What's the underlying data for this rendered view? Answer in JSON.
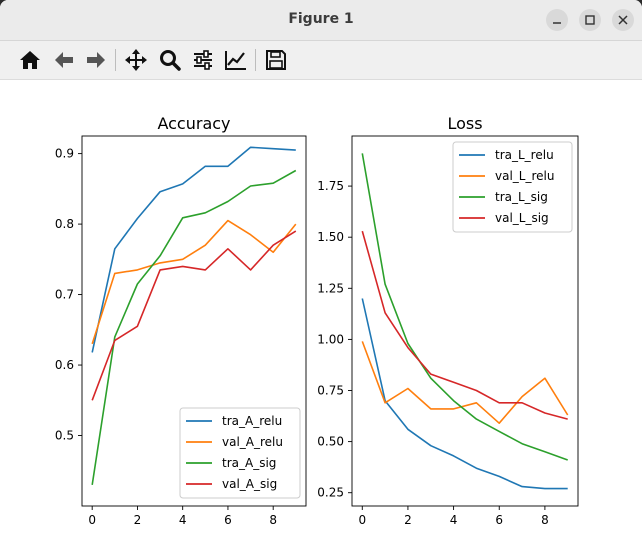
{
  "window": {
    "title": "Figure 1"
  },
  "toolbar": {
    "buttons": [
      "home-icon",
      "back-arrow-icon",
      "forward-arrow-icon",
      "pan-icon",
      "zoom-icon",
      "subplots-config-icon",
      "edit-axis-icon",
      "save-icon"
    ]
  },
  "colors": {
    "blue": "#1f77b4",
    "orange": "#ff7f0e",
    "green": "#2ca02c",
    "red": "#d62728"
  },
  "chart_data": [
    {
      "type": "line",
      "title": "Accuracy",
      "xlabel": "",
      "ylabel": "",
      "x": [
        0,
        1,
        2,
        3,
        4,
        5,
        6,
        7,
        8,
        9
      ],
      "xlim": [
        -0.45,
        9.45
      ],
      "ylim": [
        0.4,
        0.925
      ],
      "xticks": [
        "0",
        "2",
        "4",
        "6",
        "8"
      ],
      "yticks": [
        "0.5",
        "0.6",
        "0.7",
        "0.8",
        "0.9"
      ],
      "grid": false,
      "legend": "lower right",
      "series": [
        {
          "name": "tra_A_relu",
          "color": "#1f77b4",
          "values": [
            0.618,
            0.765,
            0.808,
            0.846,
            0.857,
            0.882,
            0.882,
            0.909,
            0.907,
            0.905
          ]
        },
        {
          "name": "val_A_relu",
          "color": "#ff7f0e",
          "values": [
            0.63,
            0.73,
            0.735,
            0.745,
            0.75,
            0.77,
            0.805,
            0.785,
            0.76,
            0.8
          ]
        },
        {
          "name": "tra_A_sig",
          "color": "#2ca02c",
          "values": [
            0.43,
            0.64,
            0.715,
            0.755,
            0.809,
            0.816,
            0.832,
            0.854,
            0.858,
            0.876
          ]
        },
        {
          "name": "val_A_sig",
          "color": "#d62728",
          "values": [
            0.55,
            0.635,
            0.655,
            0.735,
            0.74,
            0.735,
            0.765,
            0.735,
            0.77,
            0.79
          ]
        }
      ]
    },
    {
      "type": "line",
      "title": "Loss",
      "xlabel": "",
      "ylabel": "",
      "x": [
        0,
        1,
        2,
        3,
        4,
        5,
        6,
        7,
        8,
        9
      ],
      "xlim": [
        -0.45,
        9.45
      ],
      "ylim": [
        0.185,
        1.995
      ],
      "xticks": [
        "0",
        "2",
        "4",
        "6",
        "8"
      ],
      "yticks": [
        "0.25",
        "0.50",
        "0.75",
        "1.00",
        "1.25",
        "1.50",
        "1.75"
      ],
      "grid": false,
      "legend": "upper right",
      "series": [
        {
          "name": "tra_L_relu",
          "color": "#1f77b4",
          "values": [
            1.2,
            0.7,
            0.56,
            0.48,
            0.43,
            0.37,
            0.33,
            0.28,
            0.27,
            0.27
          ]
        },
        {
          "name": "val_L_relu",
          "color": "#ff7f0e",
          "values": [
            0.99,
            0.69,
            0.76,
            0.66,
            0.66,
            0.69,
            0.59,
            0.72,
            0.81,
            0.63
          ]
        },
        {
          "name": "tra_L_sig",
          "color": "#2ca02c",
          "values": [
            1.91,
            1.27,
            0.98,
            0.81,
            0.7,
            0.61,
            0.55,
            0.49,
            0.45,
            0.41
          ]
        },
        {
          "name": "val_L_sig",
          "color": "#d62728",
          "values": [
            1.53,
            1.13,
            0.96,
            0.83,
            0.79,
            0.75,
            0.69,
            0.69,
            0.64,
            0.61
          ]
        }
      ]
    }
  ]
}
